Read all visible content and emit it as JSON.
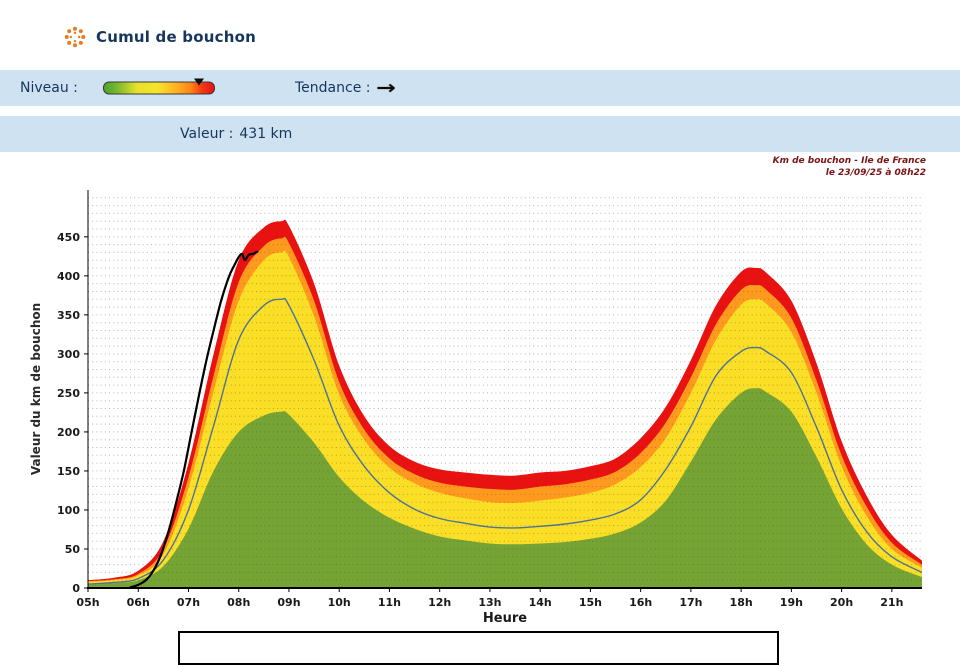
{
  "header": {
    "title": "Cumul de bouchon"
  },
  "controls": {
    "niveau_label": "Niveau :",
    "tendance_label": "Tendance :",
    "tendance_arrow": "→",
    "valeur_label": "Valeur :",
    "valeur_value": "431 km",
    "gauge": {
      "marker_position_pct": 86,
      "colors": [
        "#4da32f",
        "#f6e52c",
        "#ff8316",
        "#e81111"
      ]
    }
  },
  "annotation": {
    "line1": "Km de bouchon - Ile de France",
    "line2": "le 23/09/25 à 08h22"
  },
  "chart_data": {
    "type": "area",
    "title": "Km de bouchon - Ile de France, le 23/09/25 à 08h22",
    "xlabel": "Heure",
    "ylabel": "Valeur du  km de bouchon",
    "grid": "horizontal-dotted",
    "current_value_km": 431,
    "xlim": [
      5,
      21.6
    ],
    "ylim": [
      0,
      510
    ],
    "x_ticks": [
      "05h",
      "06h",
      "07h",
      "08h",
      "09h",
      "10h",
      "11h",
      "12h",
      "13h",
      "14h",
      "15h",
      "16h",
      "17h",
      "18h",
      "19h",
      "20h",
      "21h"
    ],
    "x_tick_values": [
      5,
      6,
      7,
      8,
      9,
      10,
      11,
      12,
      13,
      14,
      15,
      16,
      17,
      18,
      19,
      20,
      21
    ],
    "y_ticks": [
      0,
      50,
      100,
      150,
      200,
      250,
      300,
      350,
      400,
      450
    ],
    "x": [
      5,
      5.5,
      6,
      6.5,
      7,
      7.5,
      8,
      8.5,
      8.85,
      9,
      9.5,
      10,
      10.5,
      11,
      11.5,
      12,
      12.5,
      13,
      13.5,
      14,
      14.5,
      15,
      15.5,
      16,
      16.5,
      17,
      17.5,
      18,
      18.3,
      18.5,
      19,
      19.5,
      20,
      20.5,
      21,
      21.6
    ],
    "bands": [
      {
        "name": "red-max-envelope",
        "color": "#ea1111",
        "values": [
          10,
          13,
          22,
          60,
          160,
          300,
          420,
          462,
          470,
          464,
          390,
          285,
          220,
          182,
          162,
          152,
          148,
          145,
          144,
          148,
          150,
          156,
          166,
          192,
          232,
          292,
          362,
          405,
          410,
          404,
          368,
          288,
          188,
          118,
          68,
          35
        ]
      },
      {
        "name": "orange-high-envelope",
        "color": "#ff9a1e",
        "values": [
          9,
          11,
          18,
          50,
          142,
          272,
          392,
          438,
          448,
          442,
          368,
          264,
          203,
          166,
          146,
          135,
          130,
          127,
          126,
          130,
          133,
          139,
          149,
          173,
          212,
          270,
          338,
          382,
          388,
          382,
          346,
          266,
          170,
          104,
          58,
          30
        ]
      },
      {
        "name": "yellow-mid-envelope",
        "color": "#fbdf26",
        "values": [
          8,
          10,
          16,
          43,
          128,
          252,
          368,
          420,
          430,
          424,
          348,
          248,
          190,
          154,
          134,
          122,
          115,
          110,
          109,
          112,
          116,
          122,
          133,
          155,
          192,
          250,
          318,
          363,
          370,
          364,
          328,
          250,
          156,
          92,
          50,
          26
        ]
      },
      {
        "name": "green-low-envelope",
        "color": "#76a434",
        "values": [
          4,
          6,
          10,
          28,
          76,
          150,
          200,
          221,
          226,
          222,
          186,
          142,
          111,
          90,
          76,
          66,
          61,
          57,
          56,
          57,
          59,
          63,
          70,
          84,
          112,
          162,
          216,
          250,
          256,
          251,
          226,
          168,
          102,
          56,
          30,
          14
        ]
      }
    ],
    "lines": [
      {
        "name": "average-reference-line",
        "color": "#4f7296",
        "width": 1.4,
        "values": [
          5,
          7,
          12,
          36,
          100,
          208,
          318,
          362,
          370,
          362,
          292,
          208,
          156,
          122,
          101,
          89,
          83,
          78,
          77,
          79,
          82,
          87,
          95,
          113,
          152,
          207,
          272,
          303,
          308,
          303,
          276,
          206,
          126,
          72,
          40,
          20
        ]
      },
      {
        "name": "today-line",
        "color": "#000000",
        "width": 2.2,
        "x": [
          5.85,
          6.0,
          6.15,
          6.3,
          6.45,
          6.6,
          6.75,
          6.9,
          7.05,
          7.2,
          7.35,
          7.5,
          7.65,
          7.8,
          7.9,
          8.0,
          8.07,
          8.12,
          8.2,
          8.28,
          8.37
        ],
        "values": [
          1,
          4,
          10,
          22,
          42,
          72,
          108,
          148,
          196,
          244,
          290,
          330,
          368,
          398,
          412,
          424,
          428,
          420,
          427,
          428,
          431
        ]
      }
    ]
  }
}
